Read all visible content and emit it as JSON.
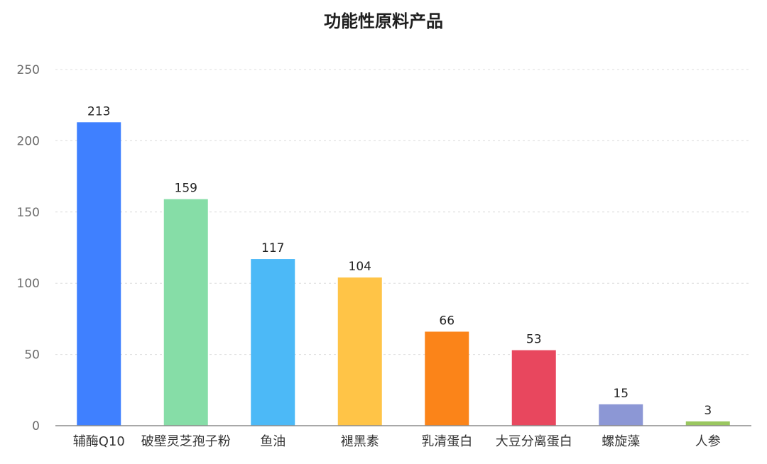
{
  "chart_data": {
    "type": "bar",
    "title": "功能性原料产品",
    "categories": [
      "辅酶Q10",
      "破壁灵芝孢子粉",
      "鱼油",
      "褪黑素",
      "乳清蛋白",
      "大豆分离蛋白",
      "螺旋藻",
      "人参"
    ],
    "values": [
      213,
      159,
      117,
      104,
      66,
      53,
      15,
      3
    ],
    "colors": [
      "#3f80ff",
      "#86dda7",
      "#4cb9f7",
      "#ffc447",
      "#fb8419",
      "#e8475e",
      "#8c97d5",
      "#9ac75f"
    ],
    "xlabel": "",
    "ylabel": "",
    "ylim": [
      0,
      250
    ],
    "yticks": [
      0,
      50,
      100,
      150,
      200,
      250
    ],
    "grid": true,
    "legend": "none"
  }
}
